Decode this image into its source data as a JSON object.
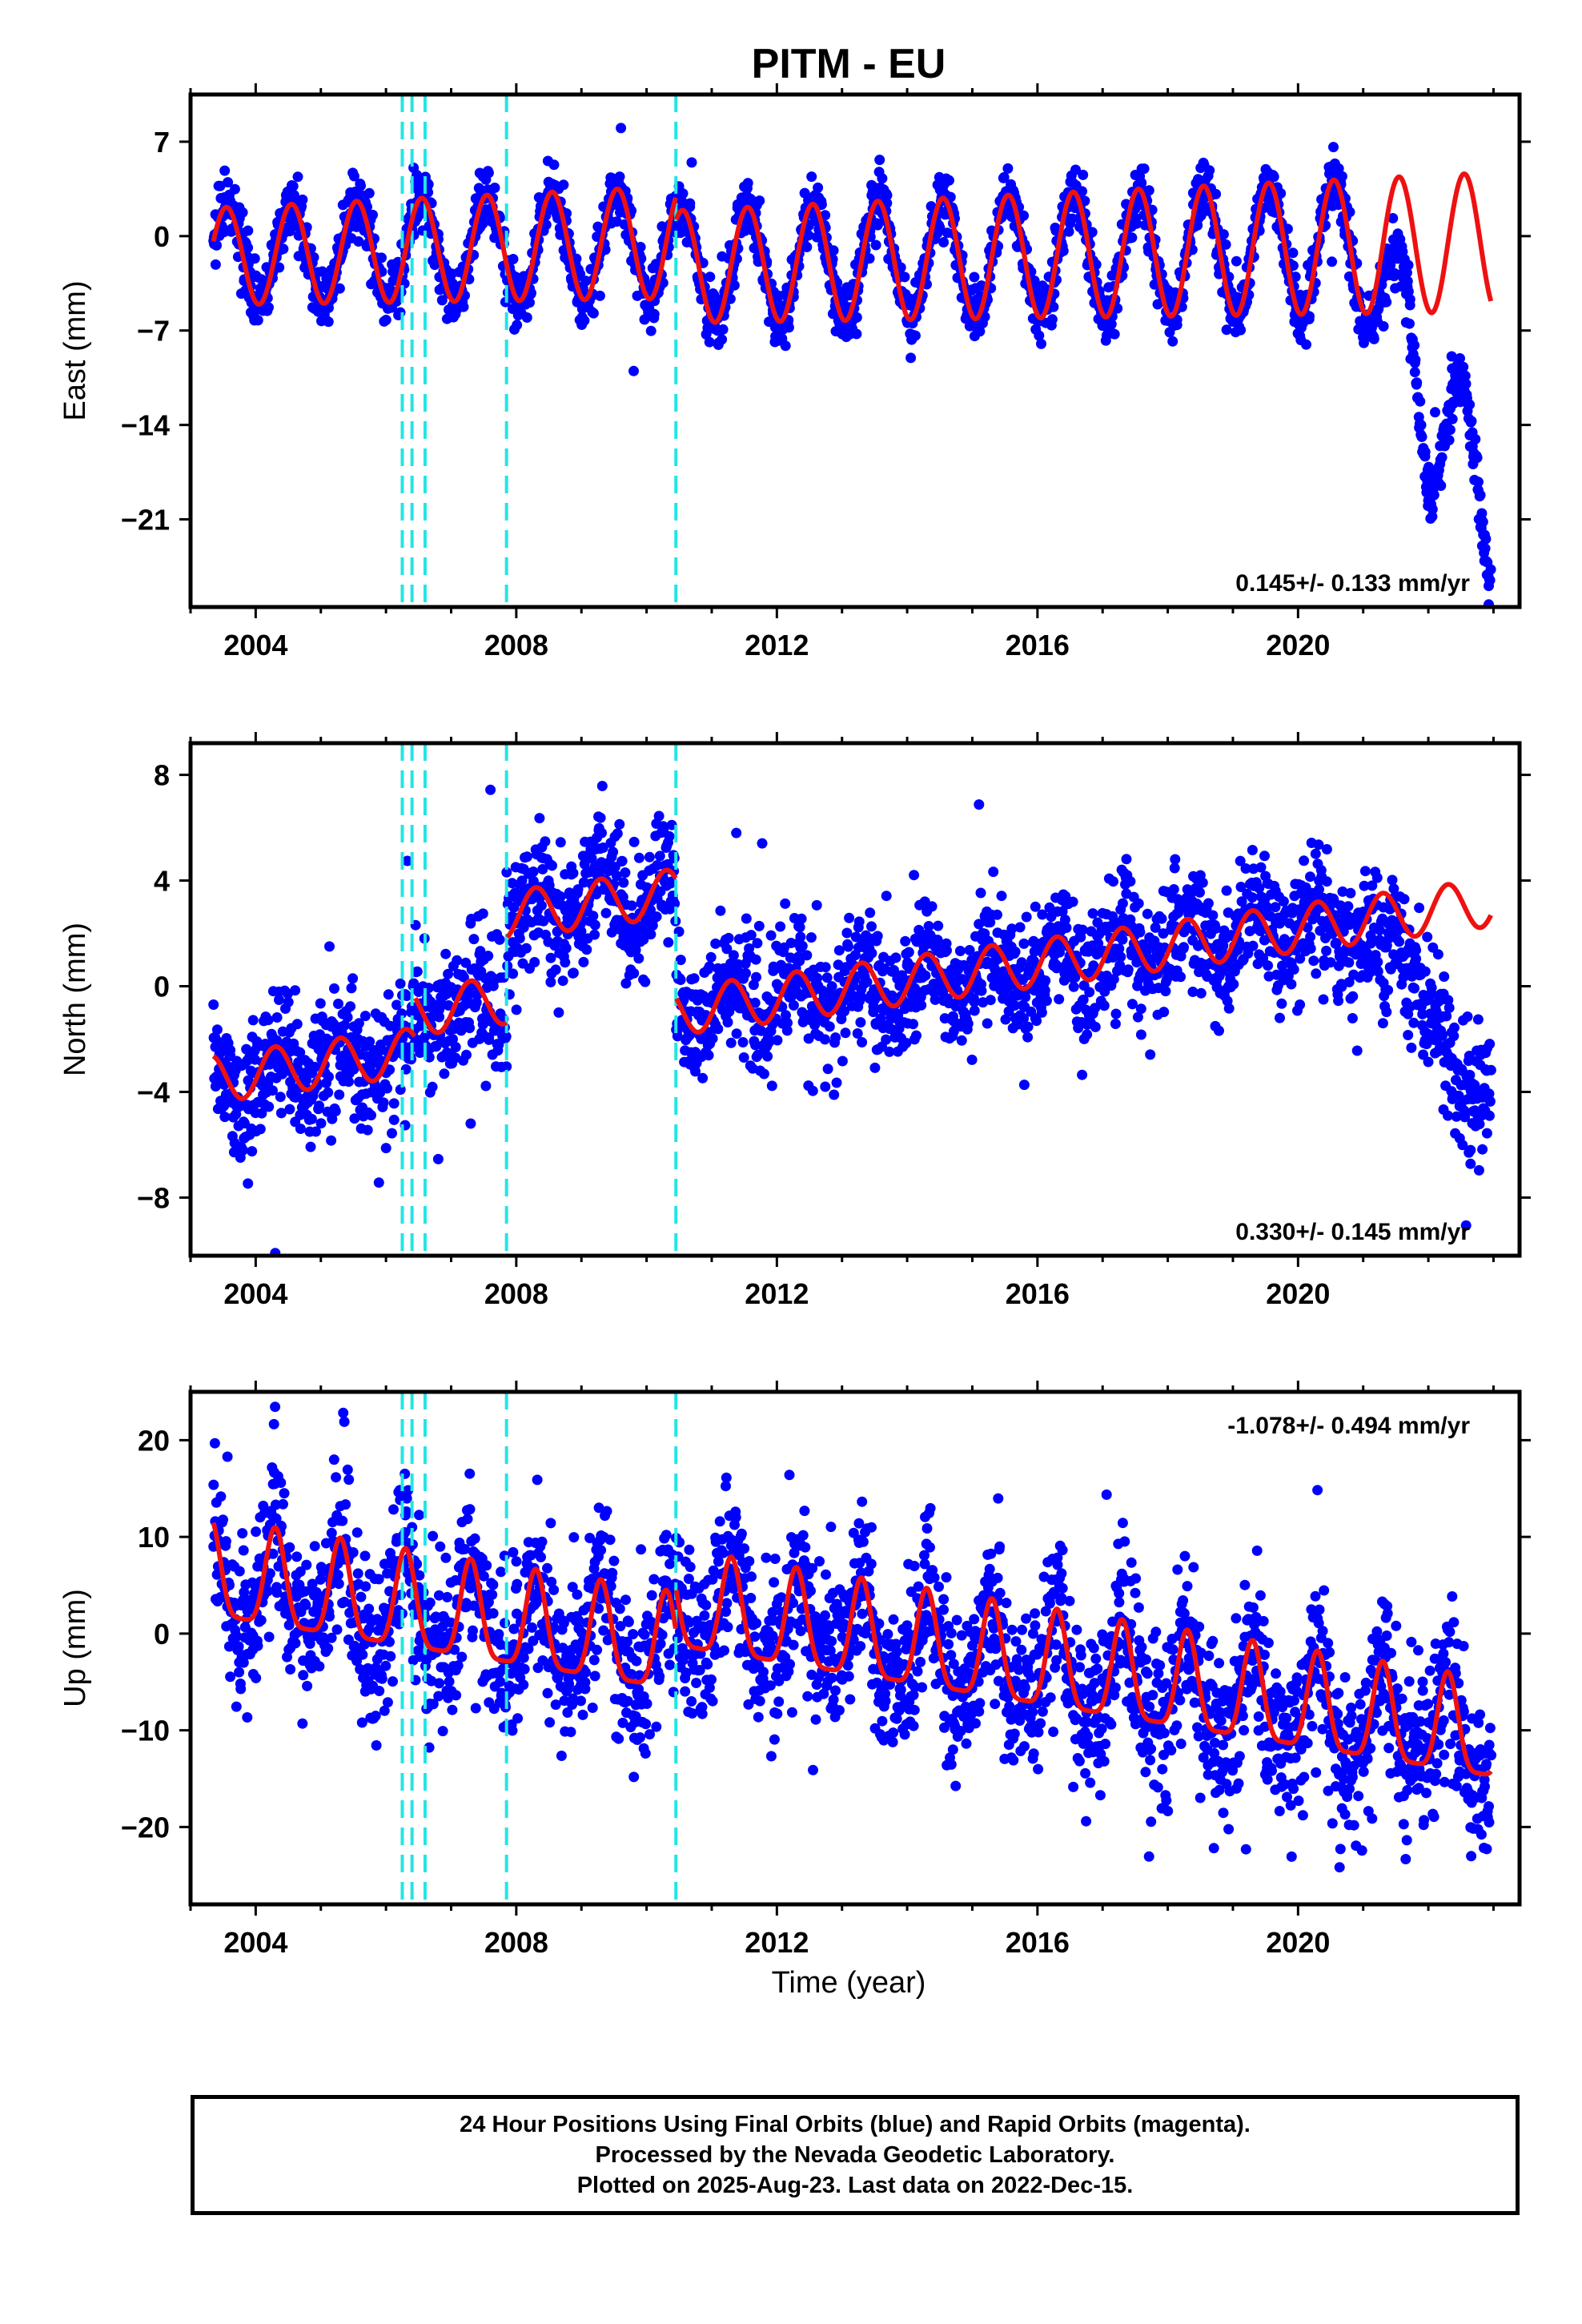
{
  "figure_title": "PITM - EU",
  "x_axis_label": "Time (year)",
  "caption": [
    "24 Hour Positions Using Final Orbits (blue) and Rapid Orbits (magenta).",
    "Processed by the Nevada Geodetic Laboratory.",
    "Plotted on 2025-Aug-23. Last data on 2022-Dec-15."
  ],
  "colors": {
    "points": "#0000ff",
    "model": "#ee1111",
    "steps": "#22e5e5",
    "frame": "#000000"
  },
  "chart_data": [
    {
      "type": "scatter",
      "title": "",
      "xlabel": "",
      "ylabel": "East (mm)",
      "xlim": [
        2003.0,
        2023.4
      ],
      "ylim": [
        -27.5,
        10.5
      ],
      "yticks": [
        7,
        0,
        -7,
        -14,
        -21
      ],
      "xticks": [
        2004,
        2008,
        2012,
        2016,
        2020
      ],
      "rate_text": "0.145+/- 0.133 mm/yr",
      "rate_position": "bottom-right",
      "step_lines": [
        2006.25,
        2006.4,
        2006.6,
        2007.85,
        2010.45
      ],
      "data_range": [
        2003.35,
        2022.96
      ],
      "model_range": [
        2003.35,
        2022.96
      ],
      "model": {
        "offset": -1.5,
        "amp": 3.6,
        "amp_growth": 0.08,
        "phase": 2003.55,
        "trend": 0.145,
        "steps": [
          {
            "t": 2010.45,
            "dy": -1.8
          }
        ]
      },
      "deviation": [
        {
          "x": 2020.75,
          "y": 0
        },
        {
          "x": 2021.1,
          "y": -1.2
        },
        {
          "x": 2021.4,
          "y": -4.5
        },
        {
          "x": 2021.7,
          "y": -7.0
        },
        {
          "x": 2022.0,
          "y": -13.0
        },
        {
          "x": 2022.35,
          "y": -12.5
        },
        {
          "x": 2022.6,
          "y": -17.0
        },
        {
          "x": 2022.96,
          "y": -22.0
        }
      ],
      "noise": 1.1,
      "grid": false
    },
    {
      "type": "scatter",
      "title": "",
      "xlabel": "",
      "ylabel": "North (mm)",
      "xlim": [
        2003.0,
        2023.4
      ],
      "ylim": [
        -10.2,
        9.2
      ],
      "yticks": [
        8,
        4,
        0,
        -4,
        -8
      ],
      "xticks": [
        2004,
        2008,
        2012,
        2016,
        2020
      ],
      "rate_text": "0.330+/- 0.145 mm/yr",
      "rate_position": "bottom-right",
      "step_lines": [
        2006.25,
        2006.4,
        2006.6,
        2007.85,
        2010.45
      ],
      "data_range": [
        2003.35,
        2022.96
      ],
      "model_range": [
        2003.35,
        2022.96
      ],
      "model": {
        "offset": -3.5,
        "amp": 0.9,
        "amp_growth": 0,
        "phase": 2003.3,
        "trend": 0.33,
        "steps": [
          {
            "t": 2006.45,
            "dy": 1.5
          },
          {
            "t": 2007.85,
            "dy": 3.2
          },
          {
            "t": 2010.45,
            "dy": -4.5
          }
        ]
      },
      "deviation": [
        {
          "x": 2021.0,
          "y": 0
        },
        {
          "x": 2021.3,
          "y": -2.5
        },
        {
          "x": 2021.6,
          "y": -1.0
        },
        {
          "x": 2022.0,
          "y": -3.5
        },
        {
          "x": 2022.4,
          "y": -7.0
        },
        {
          "x": 2022.96,
          "y": -6.0
        }
      ],
      "noise": 1.2,
      "grid": false
    },
    {
      "type": "scatter",
      "title": "",
      "xlabel": "Time (year)",
      "ylabel": "Up (mm)",
      "xlim": [
        2003.0,
        2023.4
      ],
      "ylim": [
        -28.0,
        25.0
      ],
      "yticks": [
        20,
        10,
        0,
        -10,
        -20
      ],
      "xticks": [
        2004,
        2008,
        2012,
        2016,
        2020
      ],
      "rate_text": "-1.078+/- 0.494 mm/yr",
      "rate_position": "top-right",
      "step_lines": [
        2006.25,
        2006.4,
        2006.6,
        2007.85,
        2010.45
      ],
      "data_range": [
        2003.35,
        2022.96
      ],
      "model_range": [
        2003.35,
        2022.96
      ],
      "model": {
        "offset": 5.0,
        "amp": 5.0,
        "amp_growth": 0,
        "phase": 2003.3,
        "trend": -1.078,
        "peak_shape": 2.2,
        "steps": [
          {
            "t": 2010.45,
            "dy": 4.5
          }
        ]
      },
      "deviation": [],
      "noise": 4.2,
      "grid": false
    }
  ]
}
